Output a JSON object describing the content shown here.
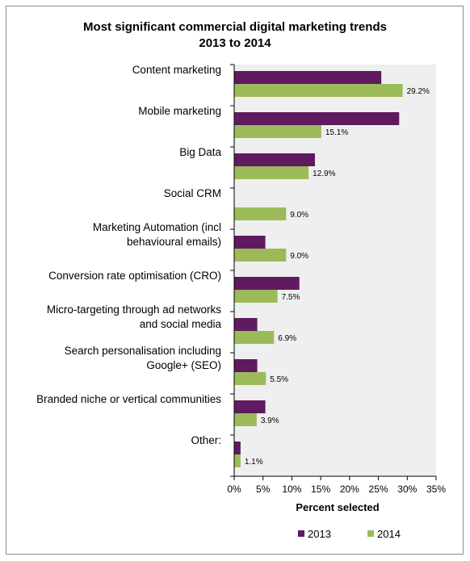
{
  "chart_data": {
    "type": "bar",
    "orientation": "horizontal",
    "title_lines": [
      "Most significant commercial digital marketing trends",
      "2013 to 2014"
    ],
    "xlabel": "Percent selected",
    "ylabel": "",
    "xlim": [
      0,
      35
    ],
    "x_ticks": [
      "0%",
      "5%",
      "10%",
      "15%",
      "20%",
      "25%",
      "30%",
      "35%"
    ],
    "categories": [
      [
        "Content marketing"
      ],
      [
        "Mobile marketing"
      ],
      [
        "Big Data"
      ],
      [
        "Social CRM"
      ],
      [
        "Marketing Automation (incl",
        "behavioural emails)"
      ],
      [
        "Conversion rate optimisation (CRO)"
      ],
      [
        "Micro-targeting through ad networks",
        "and social media"
      ],
      [
        "Search personalisation including",
        "Google+ (SEO)"
      ],
      [
        "Branded niche or vertical communities"
      ],
      [
        "Other:"
      ]
    ],
    "series": [
      {
        "name": "2013",
        "color": "#5f1a60",
        "values": [
          25.5,
          28.6,
          14.0,
          null,
          5.4,
          11.3,
          4.0,
          4.0,
          5.4,
          1.1
        ],
        "labels": [
          null,
          null,
          null,
          null,
          null,
          null,
          null,
          null,
          null,
          null
        ]
      },
      {
        "name": "2014",
        "color": "#9bbb59",
        "values": [
          29.2,
          15.1,
          12.9,
          9.0,
          9.0,
          7.5,
          6.9,
          5.5,
          3.9,
          1.1
        ],
        "labels": [
          "29.2%",
          "15.1%",
          "12.9%",
          "9.0%",
          "9.0%",
          "7.5%",
          "6.9%",
          "5.5%",
          "3.9%",
          "1.1%"
        ]
      }
    ],
    "plot_background": "#efefef",
    "grid": false,
    "legend_position": "bottom"
  }
}
